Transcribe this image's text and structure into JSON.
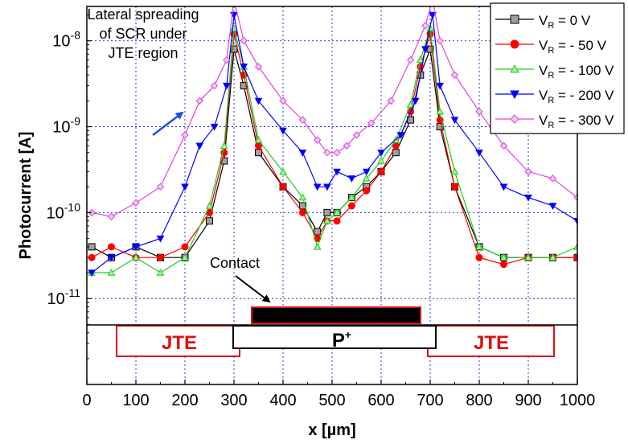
{
  "chart_data": {
    "type": "scatter",
    "title": "",
    "xlabel": "x [µm]",
    "ylabel": "Photocurrent [A]",
    "xlim": [
      0,
      1000
    ],
    "ylim_log10": [
      -12,
      -7.6
    ],
    "y_scale": "log",
    "grid": true,
    "legend_position": "top-right",
    "x_ticks": [
      "0",
      "100",
      "200",
      "300",
      "400",
      "500",
      "600",
      "700",
      "800",
      "900",
      "1000"
    ],
    "y_ticks": [
      {
        "base": "10",
        "exp": "-11",
        "log": -11
      },
      {
        "base": "10",
        "exp": "-10",
        "log": -10
      },
      {
        "base": "10",
        "exp": "-9",
        "log": -9
      },
      {
        "base": "10",
        "exp": "-8",
        "log": -8
      }
    ],
    "series": [
      {
        "legend_prefix": "V",
        "legend_sub": "R",
        "legend_suffix": " = 0 V",
        "color": "#000000",
        "fill": "#a0a0a0",
        "marker": "square",
        "x": [
          10,
          50,
          100,
          150,
          200,
          250,
          280,
          300,
          320,
          350,
          400,
          440,
          470,
          490,
          510,
          540,
          570,
          600,
          630,
          660,
          680,
          700,
          720,
          750,
          800,
          850,
          900,
          950,
          1000
        ],
        "y": [
          4e-11,
          3e-11,
          4e-11,
          3e-11,
          3e-11,
          8e-11,
          4e-10,
          8e-09,
          3e-09,
          5e-10,
          2e-10,
          1.2e-10,
          6e-11,
          1e-10,
          1e-10,
          1.5e-10,
          2e-10,
          3e-10,
          5e-10,
          1.2e-09,
          4e-09,
          8e-09,
          1e-09,
          2e-10,
          4e-11,
          3e-11,
          3e-11,
          3e-11,
          3e-11
        ]
      },
      {
        "legend_prefix": "V",
        "legend_sub": "R",
        "legend_suffix": " = - 50 V",
        "color": "#ff0000",
        "fill": "#ff0000",
        "marker": "circle",
        "x": [
          10,
          50,
          100,
          150,
          200,
          250,
          280,
          300,
          320,
          350,
          400,
          440,
          470,
          490,
          510,
          540,
          570,
          600,
          630,
          660,
          680,
          700,
          720,
          750,
          800,
          850,
          900,
          950,
          1000
        ],
        "y": [
          3e-11,
          4e-11,
          3e-11,
          3e-11,
          4e-11,
          1e-10,
          5e-10,
          1.2e-08,
          4e-09,
          6e-10,
          2e-10,
          1e-10,
          5e-11,
          8e-11,
          8e-11,
          1.2e-10,
          1.8e-10,
          3e-10,
          6e-10,
          1.5e-09,
          5e-09,
          1.2e-08,
          1.2e-09,
          2e-10,
          3e-11,
          2.5e-11,
          3e-11,
          3e-11,
          3e-11
        ]
      },
      {
        "legend_prefix": "V",
        "legend_sub": "R",
        "legend_suffix": " = - 100 V",
        "color": "#22cc22",
        "fill": "#a8f0a0",
        "marker": "triangle-up",
        "x": [
          10,
          50,
          100,
          150,
          200,
          250,
          280,
          300,
          320,
          350,
          400,
          440,
          470,
          490,
          510,
          540,
          570,
          600,
          630,
          660,
          680,
          700,
          720,
          750,
          800,
          850,
          900,
          950,
          1000
        ],
        "y": [
          2e-11,
          2e-11,
          3e-11,
          2e-11,
          3e-11,
          1.2e-10,
          6e-10,
          1.4e-08,
          5e-09,
          7e-10,
          3e-10,
          1.5e-10,
          4e-11,
          8e-11,
          1e-10,
          1.5e-10,
          2.5e-10,
          4e-10,
          7e-10,
          1.8e-09,
          6e-09,
          1.4e-08,
          1.5e-09,
          3e-10,
          4e-11,
          3e-11,
          3e-11,
          3e-11,
          4e-11
        ]
      },
      {
        "legend_prefix": "V",
        "legend_sub": "R",
        "legend_suffix": " = - 200 V",
        "color": "#0000ff",
        "fill": "#0000ff",
        "marker": "triangle-down",
        "x": [
          10,
          50,
          100,
          150,
          200,
          230,
          260,
          285,
          300,
          320,
          350,
          400,
          440,
          470,
          490,
          510,
          540,
          570,
          600,
          640,
          670,
          690,
          705,
          720,
          750,
          800,
          850,
          900,
          950,
          1000
        ],
        "y": [
          2e-11,
          3e-11,
          4e-11,
          5e-11,
          2e-10,
          6e-10,
          1e-09,
          3e-09,
          2e-08,
          5e-09,
          2e-09,
          9e-10,
          5e-10,
          2e-10,
          2e-10,
          3e-10,
          2.5e-10,
          3e-10,
          5e-10,
          8e-10,
          2e-09,
          8e-09,
          2e-08,
          3e-09,
          1.2e-09,
          5e-10,
          2e-10,
          1.5e-10,
          1.2e-10,
          8e-11
        ]
      },
      {
        "legend_prefix": "V",
        "legend_sub": "R",
        "legend_suffix": " = - 300 V",
        "color": "#dd44dd",
        "fill": "#f5c8f5",
        "marker": "diamond",
        "x": [
          10,
          50,
          100,
          150,
          200,
          230,
          260,
          285,
          300,
          320,
          350,
          400,
          440,
          470,
          490,
          510,
          530,
          550,
          580,
          620,
          660,
          690,
          705,
          720,
          750,
          800,
          850,
          900,
          950,
          1000
        ],
        "y": [
          1e-10,
          9e-11,
          1.3e-10,
          2e-10,
          8e-10,
          2e-09,
          3e-09,
          6e-09,
          3e-08,
          1e-08,
          5e-09,
          2e-09,
          1.2e-09,
          7e-10,
          5e-10,
          5e-10,
          6e-10,
          8e-10,
          1.1e-09,
          2e-09,
          6e-09,
          1.5e-08,
          3e-08,
          1e-08,
          4e-09,
          1.5e-09,
          6e-10,
          3e-10,
          2.5e-10,
          1.5e-10
        ]
      }
    ],
    "annotations": {
      "lateral": [
        "Lateral spreading",
        "of SCR under",
        "JTE region"
      ],
      "contact": "Contact",
      "jte": "JTE",
      "pplus_base": "P",
      "pplus_sup": "+"
    },
    "colors": {
      "grid": "#0000cc",
      "arrow_blue": "#1a4fe0",
      "jte_outline": "#e01010",
      "contact_outline": "#e01010",
      "contact_fill": "#000000"
    }
  }
}
